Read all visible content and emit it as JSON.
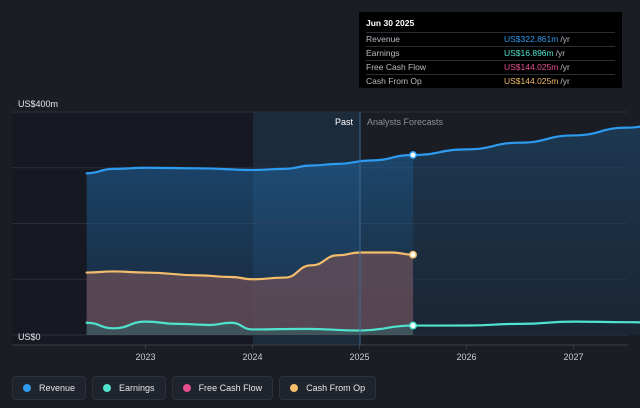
{
  "chart_data": {
    "type": "area",
    "y_axis": {
      "top_label": "US$400m",
      "bottom_label": "US$0",
      "ylim": [
        0,
        400
      ]
    },
    "x_ticks": [
      "2023",
      "2024",
      "2025",
      "2026",
      "2027"
    ],
    "divider": {
      "past_label": "Past",
      "forecast_label": "Analysts Forecasts"
    },
    "series": [
      {
        "name": "Revenue",
        "color": "#2d9bf0",
        "points": [
          [
            2022.45,
            290
          ],
          [
            2022.7,
            298
          ],
          [
            2023.0,
            300
          ],
          [
            2023.5,
            299
          ],
          [
            2024.0,
            296
          ],
          [
            2024.3,
            298
          ],
          [
            2024.55,
            304
          ],
          [
            2024.8,
            307
          ],
          [
            2025.1,
            313
          ],
          [
            2025.5,
            322.861
          ],
          [
            2026.0,
            333
          ],
          [
            2026.5,
            345
          ],
          [
            2027.0,
            358
          ],
          [
            2027.5,
            372
          ],
          [
            2027.95,
            386
          ]
        ]
      },
      {
        "name": "Cash From Op",
        "color": "#f4bd6b",
        "points": [
          [
            2022.45,
            112
          ],
          [
            2022.7,
            114
          ],
          [
            2023.0,
            112
          ],
          [
            2023.5,
            107
          ],
          [
            2023.8,
            104
          ],
          [
            2024.0,
            100
          ],
          [
            2024.3,
            103
          ],
          [
            2024.55,
            125
          ],
          [
            2024.8,
            143
          ],
          [
            2025.0,
            148
          ],
          [
            2025.3,
            148
          ],
          [
            2025.5,
            144.025
          ]
        ]
      },
      {
        "name": "Free Cash Flow",
        "color": "#e64f8e",
        "points": [
          [
            2022.45,
            112
          ],
          [
            2022.7,
            114
          ],
          [
            2023.0,
            112
          ],
          [
            2023.5,
            107
          ],
          [
            2023.8,
            104
          ],
          [
            2024.0,
            100
          ],
          [
            2024.3,
            103
          ],
          [
            2024.55,
            125
          ],
          [
            2024.8,
            143
          ],
          [
            2025.0,
            148
          ],
          [
            2025.3,
            148
          ],
          [
            2025.5,
            144.025
          ]
        ]
      },
      {
        "name": "Earnings",
        "color": "#4fe3cf",
        "points": [
          [
            2022.45,
            22
          ],
          [
            2022.7,
            12
          ],
          [
            2023.0,
            24
          ],
          [
            2023.3,
            20
          ],
          [
            2023.6,
            18
          ],
          [
            2023.8,
            22
          ],
          [
            2024.0,
            10
          ],
          [
            2024.5,
            11
          ],
          [
            2025.0,
            8
          ],
          [
            2025.5,
            16.896
          ],
          [
            2026.0,
            17
          ],
          [
            2026.5,
            20
          ],
          [
            2027.0,
            24
          ],
          [
            2027.5,
            23
          ],
          [
            2027.95,
            21
          ]
        ]
      }
    ],
    "highlight_x": 2025.5
  },
  "tooltip": {
    "date": "Jun 30 2025",
    "rows": [
      {
        "name": "Revenue",
        "value": "US$322.861m",
        "unit": "/yr",
        "color": "#2d9bf0"
      },
      {
        "name": "Earnings",
        "value": "US$16.896m",
        "unit": "/yr",
        "color": "#4fe3cf"
      },
      {
        "name": "Free Cash Flow",
        "value": "US$144.025m",
        "unit": "/yr",
        "color": "#e64f8e"
      },
      {
        "name": "Cash From Op",
        "value": "US$144.025m",
        "unit": "/yr",
        "color": "#f4bd6b"
      }
    ]
  },
  "legend": [
    {
      "label": "Revenue",
      "color": "#2d9bf0"
    },
    {
      "label": "Earnings",
      "color": "#4fe3cf"
    },
    {
      "label": "Free Cash Flow",
      "color": "#e64f8e"
    },
    {
      "label": "Cash From Op",
      "color": "#f4bd6b"
    }
  ]
}
